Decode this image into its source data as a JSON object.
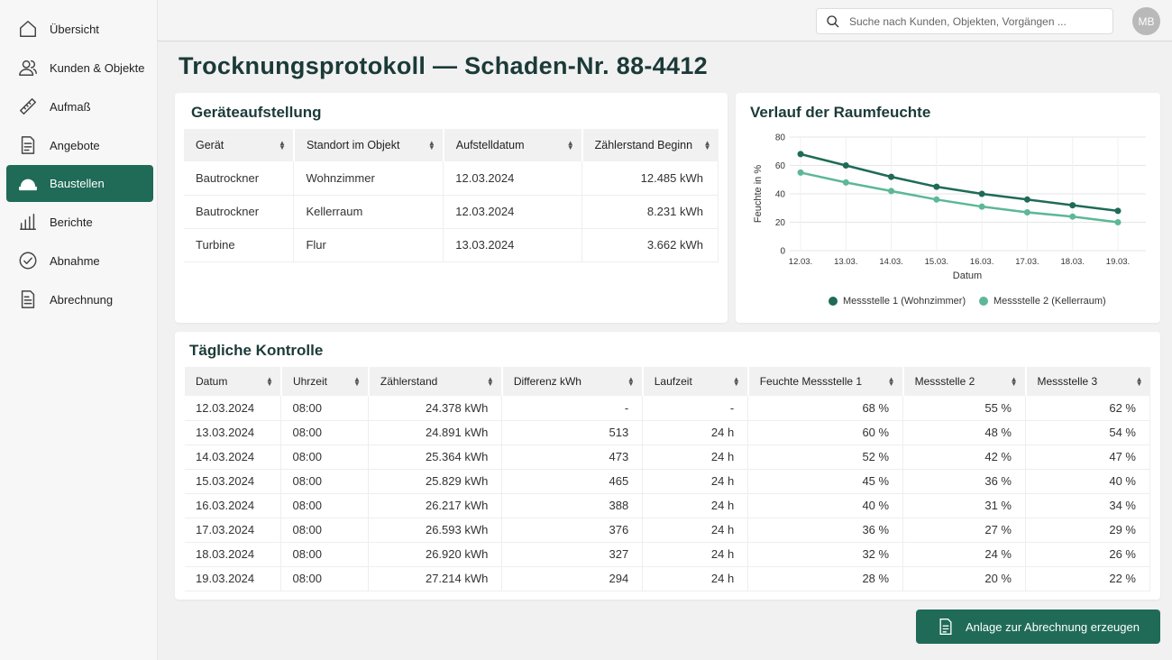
{
  "sidebar": {
    "items": [
      {
        "label": "Übersicht",
        "icon": "home-icon"
      },
      {
        "label": "Kunden & Objekte",
        "icon": "users-icon"
      },
      {
        "label": "Aufmaß",
        "icon": "ruler-icon"
      },
      {
        "label": "Angebote",
        "icon": "document-icon"
      },
      {
        "label": "Baustellen",
        "icon": "hard-hat-icon",
        "active": true
      },
      {
        "label": "Berichte",
        "icon": "bar-chart-icon"
      },
      {
        "label": "Abnahme",
        "icon": "check-circle-icon"
      },
      {
        "label": "Abrechnung",
        "icon": "invoice-icon"
      }
    ]
  },
  "topbar": {
    "search_placeholder": "Suche nach Kunden, Objekten, Vorgängen ...",
    "avatar_initials": "MB"
  },
  "page_title": "Trocknungsprotokoll — Schaden-Nr. 88-4412",
  "geraete": {
    "title": "Geräteaufstellung",
    "columns": [
      "Gerät",
      "Standort im Objekt",
      "Aufstelldatum",
      "Zählerstand Beginn"
    ],
    "rows": [
      [
        "Bautrockner",
        "Wohnzimmer",
        "12.03.2024",
        "12.485 kWh"
      ],
      [
        "Bautrockner",
        "Kellerraum",
        "12.03.2024",
        "8.231 kWh"
      ],
      [
        "Turbine",
        "Flur",
        "13.03.2024",
        "3.662 kWh"
      ]
    ]
  },
  "chart": {
    "title": "Verlauf der Raumfeuchte"
  },
  "chart_data": {
    "type": "line",
    "title": "Verlauf der Raumfeuchte",
    "xlabel": "Datum",
    "ylabel": "Feuchte in %",
    "categories": [
      "12.03.",
      "13.03.",
      "14.03.",
      "15.03.",
      "16.03.",
      "17.03.",
      "18.03.",
      "19.03."
    ],
    "ylim": [
      0,
      80
    ],
    "yticks": [
      0,
      20,
      40,
      60,
      80
    ],
    "grid": true,
    "legend_position": "bottom",
    "series": [
      {
        "name": "Messstelle 1 (Wohnzimmer)",
        "color": "#1f6b57",
        "values": [
          68,
          60,
          52,
          45,
          40,
          36,
          32,
          28
        ]
      },
      {
        "name": "Messstelle 2 (Kellerraum)",
        "color": "#5cb896",
        "values": [
          55,
          48,
          42,
          36,
          31,
          27,
          24,
          20
        ]
      }
    ]
  },
  "daily": {
    "title": "Tägliche Kontrolle",
    "columns": [
      "Datum",
      "Uhrzeit",
      "Zählerstand",
      "Differenz kWh",
      "Laufzeit",
      "Feuchte Messstelle 1",
      "Messstelle 2",
      "Messstelle 3"
    ],
    "rows": [
      [
        "12.03.2024",
        "08:00",
        "24.378 kWh",
        "-",
        "-",
        "68 %",
        "55 %",
        "62 %"
      ],
      [
        "13.03.2024",
        "08:00",
        "24.891 kWh",
        "513",
        "24 h",
        "60 %",
        "48 %",
        "54 %"
      ],
      [
        "14.03.2024",
        "08:00",
        "25.364 kWh",
        "473",
        "24 h",
        "52 %",
        "42 %",
        "47 %"
      ],
      [
        "15.03.2024",
        "08:00",
        "25.829 kWh",
        "465",
        "24 h",
        "45 %",
        "36 %",
        "40 %"
      ],
      [
        "16.03.2024",
        "08:00",
        "26.217 kWh",
        "388",
        "24 h",
        "40 %",
        "31 %",
        "34 %"
      ],
      [
        "17.03.2024",
        "08:00",
        "26.593 kWh",
        "376",
        "24 h",
        "36 %",
        "27 %",
        "29 %"
      ],
      [
        "18.03.2024",
        "08:00",
        "26.920 kWh",
        "327",
        "24 h",
        "32 %",
        "24 %",
        "26 %"
      ],
      [
        "19.03.2024",
        "08:00",
        "27.214 kWh",
        "294",
        "24 h",
        "28 %",
        "20 %",
        "22 %"
      ]
    ]
  },
  "action_button": {
    "label": "Anlage zur Abrechnung erzeugen",
    "icon": "document-icon"
  },
  "colors": {
    "primary": "#1f6b57",
    "series2": "#5cb896",
    "title": "#1b3a38"
  }
}
